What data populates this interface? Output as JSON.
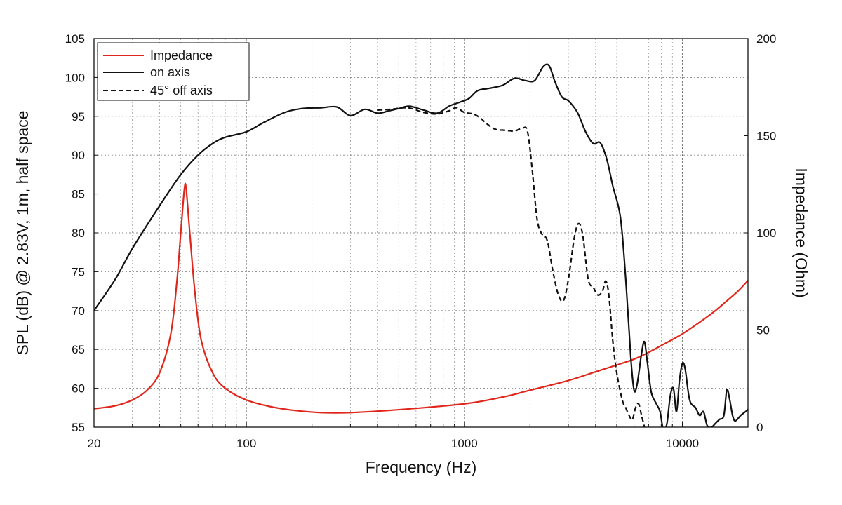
{
  "chart_data": {
    "type": "line",
    "title": "",
    "xlabel": "Frequency (Hz)",
    "ylabel_left": "SPL (dB) @ 2.83V, 1m, half space",
    "ylabel_right": "Impedance (Ohm)",
    "x_scale": "log",
    "xlim": [
      20,
      20000
    ],
    "ylim_left": [
      55,
      105
    ],
    "ylim_right": [
      0,
      200
    ],
    "grid": true,
    "legend_position": "top-left",
    "x_ticks": [
      {
        "value": 20,
        "label": "20"
      },
      {
        "value": 100,
        "label": "100"
      },
      {
        "value": 1000,
        "label": "1000"
      },
      {
        "value": 10000,
        "label": "10000"
      }
    ],
    "y_ticks_left": [
      {
        "value": 55,
        "label": "55"
      },
      {
        "value": 60,
        "label": "60"
      },
      {
        "value": 65,
        "label": "65"
      },
      {
        "value": 70,
        "label": "70"
      },
      {
        "value": 75,
        "label": "75"
      },
      {
        "value": 80,
        "label": "80"
      },
      {
        "value": 85,
        "label": "85"
      },
      {
        "value": 90,
        "label": "90"
      },
      {
        "value": 95,
        "label": "95"
      },
      {
        "value": 100,
        "label": "100"
      },
      {
        "value": 105,
        "label": "105"
      }
    ],
    "y_ticks_right": [
      {
        "value": 0,
        "label": "0"
      },
      {
        "value": 50,
        "label": "50"
      },
      {
        "value": 100,
        "label": "100"
      },
      {
        "value": 150,
        "label": "150"
      },
      {
        "value": 200,
        "label": "200"
      }
    ],
    "series": [
      {
        "name": "Impedance",
        "axis": "right",
        "color": "#e0261b",
        "dash": "solid",
        "points": [
          [
            20,
            9.5
          ],
          [
            25,
            11
          ],
          [
            30,
            14
          ],
          [
            35,
            19
          ],
          [
            40,
            28
          ],
          [
            45,
            48
          ],
          [
            48,
            75
          ],
          [
            50,
            100
          ],
          [
            52,
            123
          ],
          [
            53,
            122
          ],
          [
            55,
            100
          ],
          [
            58,
            70
          ],
          [
            62,
            45
          ],
          [
            70,
            28
          ],
          [
            80,
            20
          ],
          [
            100,
            14
          ],
          [
            130,
            10.5
          ],
          [
            170,
            8.5
          ],
          [
            220,
            7.5
          ],
          [
            300,
            7.5
          ],
          [
            500,
            9
          ],
          [
            1000,
            12
          ],
          [
            1500,
            15.5
          ],
          [
            2000,
            19
          ],
          [
            3000,
            24
          ],
          [
            4000,
            28.5
          ],
          [
            5000,
            32
          ],
          [
            6000,
            35
          ],
          [
            7000,
            38.5
          ],
          [
            8000,
            42
          ],
          [
            10000,
            48
          ],
          [
            12000,
            54
          ],
          [
            14000,
            59.5
          ],
          [
            16000,
            65
          ],
          [
            18000,
            70
          ],
          [
            20000,
            75.5
          ]
        ]
      },
      {
        "name": "on axis",
        "axis": "left",
        "color": "#111111",
        "dash": "solid",
        "points": [
          [
            20,
            70
          ],
          [
            25,
            74
          ],
          [
            30,
            78
          ],
          [
            40,
            83.5
          ],
          [
            50,
            87.5
          ],
          [
            60,
            90
          ],
          [
            70,
            91.5
          ],
          [
            80,
            92.3
          ],
          [
            100,
            93
          ],
          [
            120,
            94.2
          ],
          [
            150,
            95.5
          ],
          [
            180,
            96
          ],
          [
            220,
            96.1
          ],
          [
            260,
            96.2
          ],
          [
            300,
            95.1
          ],
          [
            350,
            95.9
          ],
          [
            400,
            95.4
          ],
          [
            450,
            95.7
          ],
          [
            500,
            96
          ],
          [
            560,
            96.3
          ],
          [
            650,
            95.8
          ],
          [
            750,
            95.4
          ],
          [
            850,
            96.3
          ],
          [
            950,
            96.8
          ],
          [
            1050,
            97.3
          ],
          [
            1150,
            98.3
          ],
          [
            1300,
            98.6
          ],
          [
            1500,
            99
          ],
          [
            1700,
            99.9
          ],
          [
            1900,
            99.6
          ],
          [
            2100,
            99.6
          ],
          [
            2300,
            101.4
          ],
          [
            2450,
            101.5
          ],
          [
            2600,
            99.5
          ],
          [
            2800,
            97.5
          ],
          [
            3000,
            97
          ],
          [
            3300,
            95.5
          ],
          [
            3600,
            93
          ],
          [
            3900,
            91.5
          ],
          [
            4200,
            91.6
          ],
          [
            4500,
            89.5
          ],
          [
            4800,
            86
          ],
          [
            5200,
            82
          ],
          [
            5500,
            74
          ],
          [
            5800,
            64
          ],
          [
            6000,
            59.8
          ],
          [
            6200,
            60.5
          ],
          [
            6500,
            64.5
          ],
          [
            6700,
            66
          ],
          [
            6900,
            63.5
          ],
          [
            7200,
            59.5
          ],
          [
            7600,
            58
          ],
          [
            7900,
            57
          ],
          [
            8200,
            54.5
          ],
          [
            8500,
            55.5
          ],
          [
            8800,
            59
          ],
          [
            9100,
            60
          ],
          [
            9400,
            57
          ],
          [
            9700,
            61
          ],
          [
            10000,
            63.2
          ],
          [
            10300,
            62.5
          ],
          [
            10800,
            58.5
          ],
          [
            11500,
            57.5
          ],
          [
            12000,
            56.5
          ],
          [
            12500,
            57
          ],
          [
            13000,
            55.2
          ],
          [
            13600,
            55
          ],
          [
            14200,
            55.5
          ],
          [
            14800,
            56
          ],
          [
            15500,
            56.5
          ],
          [
            16000,
            59.8
          ],
          [
            16500,
            58.5
          ],
          [
            17000,
            56.5
          ],
          [
            17500,
            55.8
          ],
          [
            18500,
            56.5
          ],
          [
            19500,
            57
          ],
          [
            20000,
            57.3
          ]
        ]
      },
      {
        "name": "45° off axis",
        "axis": "left",
        "color": "#111111",
        "dash": "dashed",
        "points": [
          [
            400,
            95.8
          ],
          [
            460,
            95.9
          ],
          [
            550,
            96.1
          ],
          [
            650,
            95.5
          ],
          [
            750,
            95.3
          ],
          [
            850,
            95.7
          ],
          [
            920,
            96.1
          ],
          [
            1000,
            95.5
          ],
          [
            1100,
            95.3
          ],
          [
            1180,
            94.8
          ],
          [
            1300,
            93.8
          ],
          [
            1400,
            93.3
          ],
          [
            1550,
            93.2
          ],
          [
            1700,
            93.1
          ],
          [
            1850,
            93.5
          ],
          [
            1950,
            93
          ],
          [
            2050,
            88
          ],
          [
            2150,
            82
          ],
          [
            2250,
            80
          ],
          [
            2400,
            79
          ],
          [
            2550,
            75
          ],
          [
            2700,
            72
          ],
          [
            2850,
            71.3
          ],
          [
            3000,
            74
          ],
          [
            3200,
            79.5
          ],
          [
            3350,
            81.2
          ],
          [
            3500,
            79.5
          ],
          [
            3700,
            74
          ],
          [
            3900,
            73
          ],
          [
            4100,
            72
          ],
          [
            4300,
            72.5
          ],
          [
            4450,
            73.8
          ],
          [
            4600,
            72
          ],
          [
            4800,
            66
          ],
          [
            5000,
            62
          ],
          [
            5300,
            58.5
          ],
          [
            5500,
            57.5
          ],
          [
            5700,
            56.5
          ],
          [
            5900,
            56
          ],
          [
            6100,
            57.5
          ],
          [
            6300,
            58
          ],
          [
            6500,
            56.5
          ],
          [
            6700,
            55
          ]
        ]
      }
    ]
  }
}
